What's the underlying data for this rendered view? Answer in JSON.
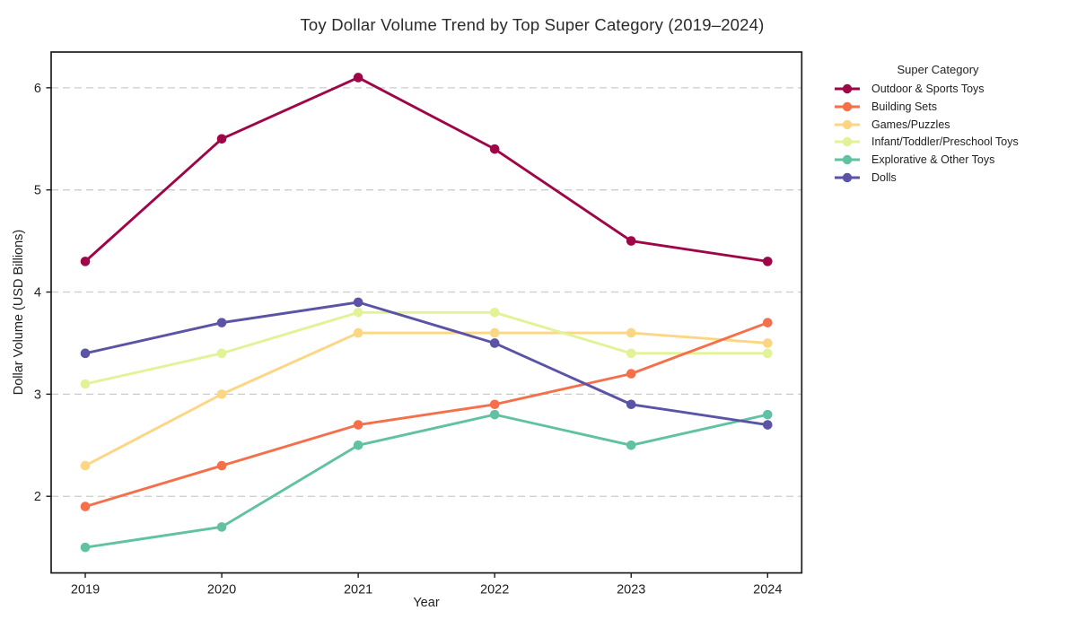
{
  "chart_data": {
    "type": "line",
    "title": "Toy Dollar Volume Trend by Top Super Category (2019–2024)",
    "xlabel": "Year",
    "ylabel": "Dollar Volume (USD Billions)",
    "legend_title": "Super Category",
    "x": [
      2019,
      2020,
      2021,
      2022,
      2023,
      2024
    ],
    "xlim": [
      2018.75,
      2024.25
    ],
    "ylim": [
      1.25,
      6.35
    ],
    "yticks": [
      2,
      3,
      4,
      5,
      6
    ],
    "grid": "horizontal dashed gridlines only",
    "grid_color": "#cccccc",
    "legend_position": "outside-right-top",
    "marker": "circle",
    "series": [
      {
        "name": "Outdoor & Sports Toys",
        "color": "#9e0647",
        "values": [
          4.3,
          5.5,
          6.1,
          5.4,
          4.5,
          4.3
        ]
      },
      {
        "name": "Building Sets",
        "color": "#f5704a",
        "values": [
          1.9,
          2.3,
          2.7,
          2.9,
          3.2,
          3.7
        ]
      },
      {
        "name": "Games/Puzzles",
        "color": "#fdd683",
        "values": [
          2.3,
          3.0,
          3.6,
          3.6,
          3.6,
          3.5
        ]
      },
      {
        "name": "Infant/Toddler/Preschool Toys",
        "color": "#e2f397",
        "values": [
          3.1,
          3.4,
          3.8,
          3.8,
          3.4,
          3.4
        ]
      },
      {
        "name": "Explorative & Other Toys",
        "color": "#60c1a3",
        "values": [
          1.5,
          1.7,
          2.5,
          2.8,
          2.5,
          2.8
        ]
      },
      {
        "name": "Dolls",
        "color": "#5b53a6",
        "values": [
          3.4,
          3.7,
          3.9,
          3.5,
          2.9,
          2.7
        ]
      }
    ]
  }
}
